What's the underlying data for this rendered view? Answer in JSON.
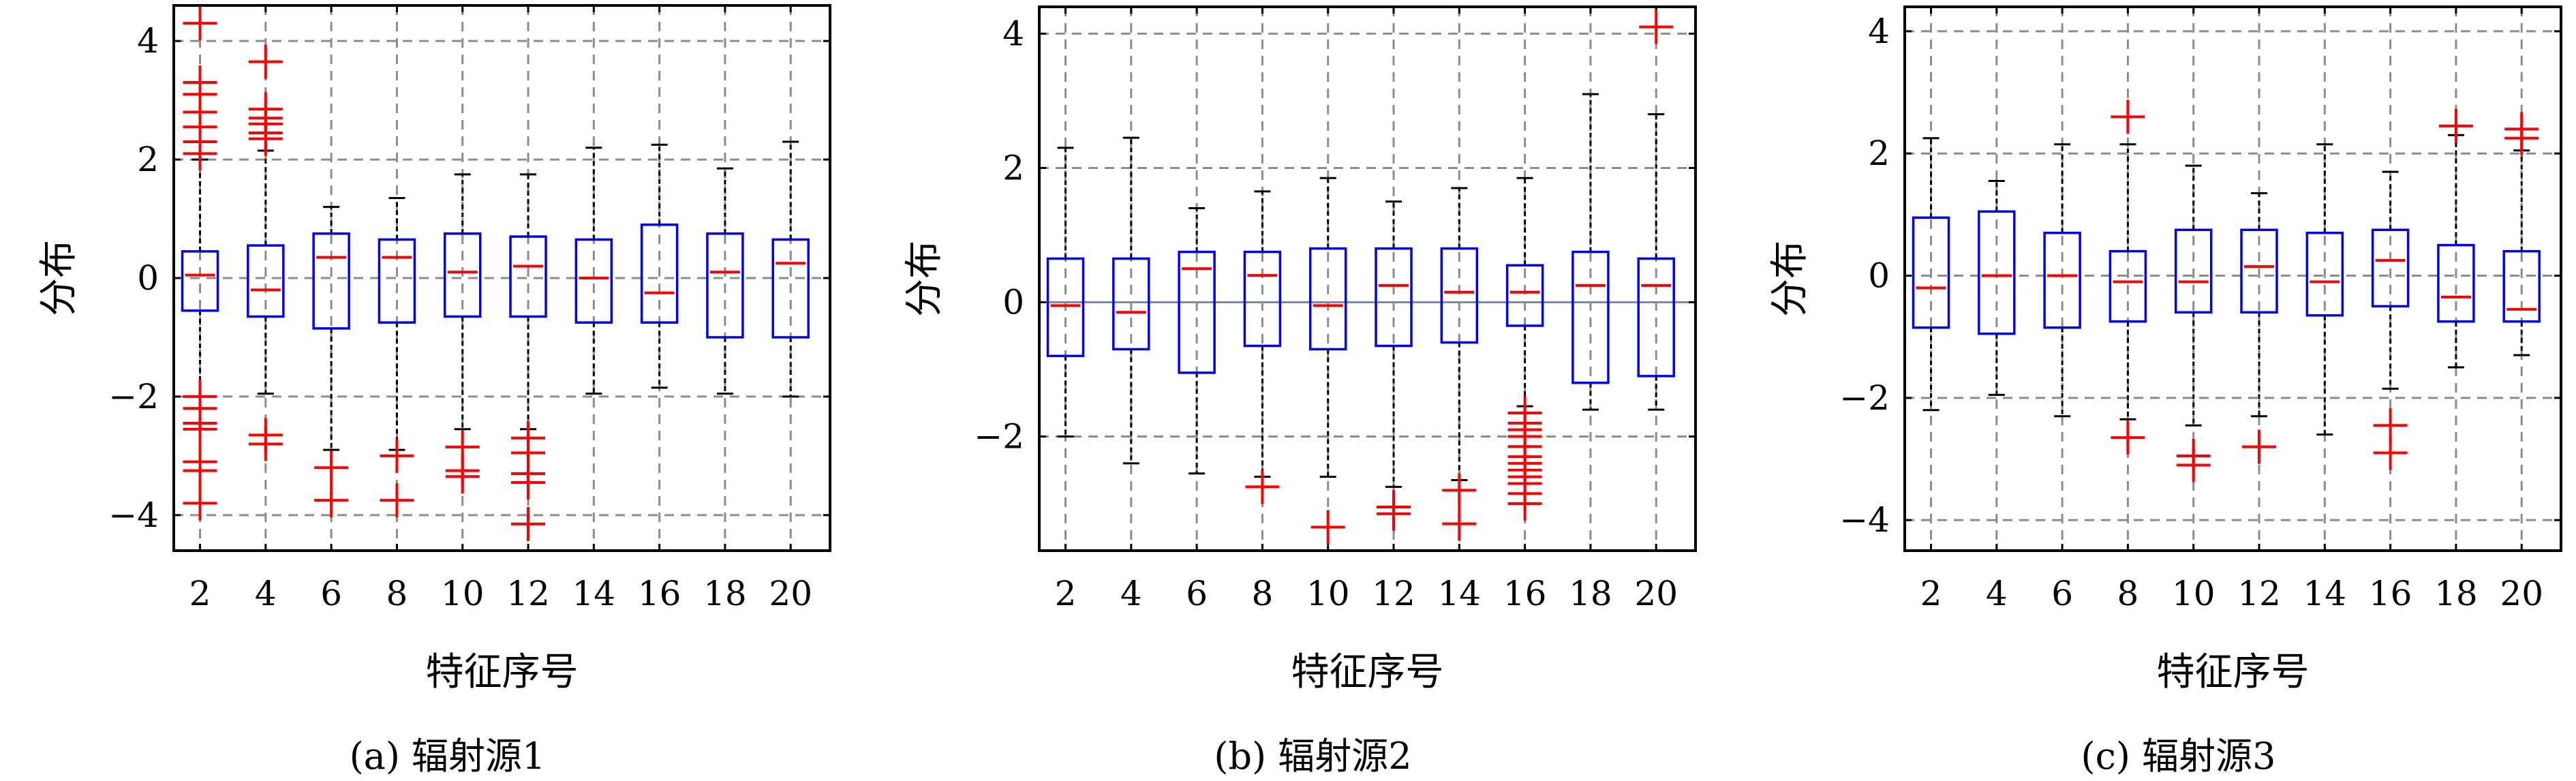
{
  "chart_data": [
    {
      "type": "box",
      "caption": "(a) 辐射源1",
      "xlabel": "特征序号",
      "ylabel": "分布",
      "ylim": [
        -4.6,
        4.6
      ],
      "yticks": [
        4,
        2,
        0,
        -2,
        -4
      ],
      "ytick_labels": [
        "4",
        "2",
        "0",
        "−2",
        "−4"
      ],
      "x_categories": [
        "2",
        "4",
        "6",
        "8",
        "10",
        "12",
        "14",
        "16",
        "18",
        "20"
      ],
      "zero_line_style": "dashed",
      "grid": true,
      "boxes": [
        {
          "x": "2",
          "low": -2.0,
          "q1": -0.55,
          "median": 0.05,
          "q3": 0.45,
          "high": 2.0,
          "outliers": [
            4.3,
            3.3,
            3.1,
            2.8,
            2.55,
            2.3,
            2.1,
            -2.0,
            -2.2,
            -2.45,
            -2.55,
            -3.1,
            -3.25,
            -3.8
          ]
        },
        {
          "x": "4",
          "low": -1.95,
          "q1": -0.65,
          "median": -0.2,
          "q3": 0.55,
          "high": 2.15,
          "outliers": [
            3.65,
            2.85,
            2.7,
            2.6,
            2.45,
            2.35,
            -2.65,
            -2.8
          ]
        },
        {
          "x": "6",
          "low": -2.9,
          "q1": -0.85,
          "median": 0.35,
          "q3": 0.75,
          "high": 1.2,
          "outliers": [
            -3.2,
            -3.75
          ]
        },
        {
          "x": "8",
          "low": -2.9,
          "q1": -0.75,
          "median": 0.35,
          "q3": 0.65,
          "high": 1.35,
          "outliers": [
            -3.0,
            -3.75
          ]
        },
        {
          "x": "10",
          "low": -2.55,
          "q1": -0.65,
          "median": 0.1,
          "q3": 0.75,
          "high": 1.75,
          "outliers": [
            -2.85,
            -3.25,
            -3.35
          ]
        },
        {
          "x": "12",
          "low": -2.55,
          "q1": -0.65,
          "median": 0.2,
          "q3": 0.7,
          "high": 1.75,
          "outliers": [
            -2.7,
            -2.95,
            -3.3,
            -3.45,
            -4.15
          ]
        },
        {
          "x": "14",
          "low": -1.95,
          "q1": -0.75,
          "median": 0.0,
          "q3": 0.65,
          "high": 2.2,
          "outliers": []
        },
        {
          "x": "16",
          "low": -1.85,
          "q1": -0.75,
          "median": -0.25,
          "q3": 0.9,
          "high": 2.25,
          "outliers": []
        },
        {
          "x": "18",
          "low": -1.95,
          "q1": -1.0,
          "median": 0.1,
          "q3": 0.75,
          "high": 1.85,
          "outliers": []
        },
        {
          "x": "20",
          "low": -2.0,
          "q1": -1.0,
          "median": 0.25,
          "q3": 0.65,
          "high": 2.3,
          "outliers": []
        }
      ]
    },
    {
      "type": "box",
      "caption": "(b) 辐射源2",
      "xlabel": "特征序号",
      "ylabel": "分布",
      "ylim": [
        -3.7,
        4.4
      ],
      "yticks": [
        4,
        2,
        0,
        -2
      ],
      "ytick_labels": [
        "4",
        "2",
        "0",
        "−2"
      ],
      "x_categories": [
        "2",
        "4",
        "6",
        "8",
        "10",
        "12",
        "14",
        "16",
        "18",
        "20"
      ],
      "zero_line_style": "solid",
      "grid": true,
      "boxes": [
        {
          "x": "2",
          "low": -2.0,
          "q1": -0.8,
          "median": -0.05,
          "q3": 0.65,
          "high": 2.3,
          "outliers": []
        },
        {
          "x": "4",
          "low": -2.4,
          "q1": -0.7,
          "median": -0.15,
          "q3": 0.65,
          "high": 2.45,
          "outliers": []
        },
        {
          "x": "6",
          "low": -2.55,
          "q1": -1.05,
          "median": 0.5,
          "q3": 0.75,
          "high": 1.4,
          "outliers": []
        },
        {
          "x": "8",
          "low": -2.6,
          "q1": -0.65,
          "median": 0.4,
          "q3": 0.75,
          "high": 1.65,
          "outliers": [
            -2.75
          ]
        },
        {
          "x": "10",
          "low": -2.6,
          "q1": -0.7,
          "median": -0.05,
          "q3": 0.8,
          "high": 1.85,
          "outliers": [
            -3.35
          ]
        },
        {
          "x": "12",
          "low": -2.75,
          "q1": -0.65,
          "median": 0.25,
          "q3": 0.8,
          "high": 1.5,
          "outliers": [
            -3.05,
            -3.15
          ]
        },
        {
          "x": "14",
          "low": -2.65,
          "q1": -0.6,
          "median": 0.15,
          "q3": 0.8,
          "high": 1.7,
          "outliers": [
            -2.8,
            -3.3
          ]
        },
        {
          "x": "16",
          "low": -1.55,
          "q1": -0.35,
          "median": 0.15,
          "q3": 0.55,
          "high": 1.85,
          "outliers": [
            -1.65,
            -1.8,
            -1.9,
            -2.0,
            -2.15,
            -2.3,
            -2.4,
            -2.5,
            -2.6,
            -2.7,
            -2.85,
            -3.0
          ]
        },
        {
          "x": "18",
          "low": -1.6,
          "q1": -1.2,
          "median": 0.25,
          "q3": 0.75,
          "high": 3.1,
          "outliers": []
        },
        {
          "x": "20",
          "low": -1.6,
          "q1": -1.1,
          "median": 0.25,
          "q3": 0.65,
          "high": 2.8,
          "outliers": [
            4.1
          ]
        }
      ]
    },
    {
      "type": "box",
      "caption": "(c) 辐射源3",
      "xlabel": "特征序号",
      "ylabel": "分布",
      "ylim": [
        -4.5,
        4.4
      ],
      "yticks": [
        4,
        2,
        0,
        -2,
        -4
      ],
      "ytick_labels": [
        "4",
        "2",
        "0",
        "−2",
        "−4"
      ],
      "x_categories": [
        "2",
        "4",
        "6",
        "8",
        "10",
        "12",
        "14",
        "16",
        "18",
        "20"
      ],
      "zero_line_style": "dashed",
      "grid": true,
      "boxes": [
        {
          "x": "2",
          "low": -2.2,
          "q1": -0.85,
          "median": -0.2,
          "q3": 0.95,
          "high": 2.25,
          "outliers": []
        },
        {
          "x": "4",
          "low": -1.95,
          "q1": -0.95,
          "median": 0.0,
          "q3": 1.05,
          "high": 1.55,
          "outliers": []
        },
        {
          "x": "6",
          "low": -2.3,
          "q1": -0.85,
          "median": 0.0,
          "q3": 0.7,
          "high": 2.15,
          "outliers": []
        },
        {
          "x": "8",
          "low": -2.35,
          "q1": -0.75,
          "median": -0.1,
          "q3": 0.4,
          "high": 2.15,
          "outliers": [
            2.6,
            -2.65
          ]
        },
        {
          "x": "10",
          "low": -2.45,
          "q1": -0.6,
          "median": -0.1,
          "q3": 0.75,
          "high": 1.8,
          "outliers": [
            -2.95,
            -3.1
          ]
        },
        {
          "x": "12",
          "low": -2.3,
          "q1": -0.6,
          "median": 0.15,
          "q3": 0.75,
          "high": 1.35,
          "outliers": [
            -2.8
          ]
        },
        {
          "x": "14",
          "low": -2.6,
          "q1": -0.65,
          "median": -0.1,
          "q3": 0.7,
          "high": 2.15,
          "outliers": []
        },
        {
          "x": "16",
          "low": -1.85,
          "q1": -0.5,
          "median": 0.25,
          "q3": 0.75,
          "high": 1.7,
          "outliers": [
            -2.45,
            -2.9
          ]
        },
        {
          "x": "18",
          "low": -1.5,
          "q1": -0.75,
          "median": -0.35,
          "q3": 0.5,
          "high": 2.3,
          "outliers": [
            2.45
          ]
        },
        {
          "x": "20",
          "low": -1.3,
          "q1": -0.75,
          "median": -0.55,
          "q3": 0.4,
          "high": 2.05,
          "outliers": [
            2.4,
            2.25
          ]
        }
      ]
    }
  ]
}
